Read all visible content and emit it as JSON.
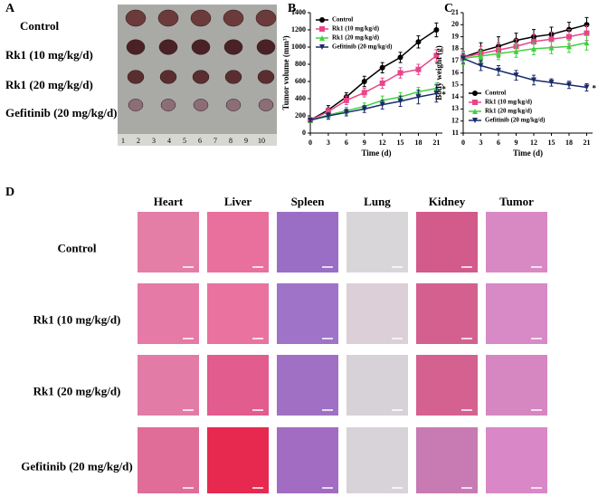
{
  "panel_a": {
    "label": "A",
    "groups": [
      "Control",
      "Rk1 (10 mg/kg/d)",
      "Rk1 (20 mg/kg/d)",
      "Gefitinib (20 mg/kg/d)"
    ],
    "ruler": [
      1,
      2,
      3,
      4,
      5,
      6,
      7,
      8,
      9,
      10
    ]
  },
  "chart_data": [
    {
      "type": "line",
      "label": "B",
      "xlabel": "Time (d)",
      "ylabel": "Tumor volume (mm³)",
      "x": [
        0,
        3,
        6,
        9,
        12,
        15,
        18,
        21
      ],
      "xlim": [
        0,
        22
      ],
      "xticks": [
        0,
        3,
        6,
        9,
        12,
        15,
        18,
        21
      ],
      "ylim": [
        0,
        1400
      ],
      "yticks": [
        0,
        200,
        400,
        600,
        800,
        1000,
        1200,
        1400
      ],
      "legend": "upper left",
      "annotations": [
        "*",
        "*"
      ],
      "series": [
        {
          "name": "Control",
          "color": "#000000",
          "marker": "circle",
          "values": [
            150,
            270,
            420,
            600,
            760,
            880,
            1060,
            1200
          ],
          "errors": [
            20,
            50,
            50,
            60,
            60,
            60,
            70,
            80
          ]
        },
        {
          "name": "Rk1 (10 mg/kg/d)",
          "color": "#e8458a",
          "marker": "square",
          "values": [
            150,
            250,
            380,
            470,
            580,
            700,
            740,
            900
          ],
          "errors": [
            20,
            40,
            50,
            50,
            60,
            60,
            60,
            70
          ]
        },
        {
          "name": "Rk1 (20 mg/kg/d)",
          "color": "#3ed23e",
          "marker": "triangle",
          "values": [
            150,
            210,
            260,
            310,
            380,
            420,
            480,
            520
          ],
          "errors": [
            20,
            40,
            40,
            40,
            50,
            50,
            50,
            60
          ]
        },
        {
          "name": "Gefitinib (20 mg/kg/d)",
          "color": "#1b2a6b",
          "marker": "triangle-down",
          "values": [
            150,
            200,
            240,
            280,
            330,
            370,
            420,
            460
          ],
          "errors": [
            20,
            40,
            40,
            40,
            50,
            60,
            80,
            100
          ]
        }
      ]
    },
    {
      "type": "line",
      "label": "C",
      "xlabel": "Time (d)",
      "ylabel": "Body weight (g)",
      "x": [
        0,
        3,
        6,
        9,
        12,
        15,
        18,
        21
      ],
      "xlim": [
        0,
        22
      ],
      "xticks": [
        0,
        3,
        6,
        9,
        12,
        15,
        18,
        21
      ],
      "ylim": [
        11,
        21
      ],
      "yticks": [
        11,
        12,
        13,
        14,
        15,
        16,
        17,
        18,
        19,
        20,
        21
      ],
      "legend": "lower left",
      "annotations": [
        "*"
      ],
      "series": [
        {
          "name": "Control",
          "color": "#000000",
          "marker": "circle",
          "values": [
            17.3,
            17.8,
            18.2,
            18.7,
            19.0,
            19.2,
            19.6,
            20.0
          ],
          "errors": [
            0.5,
            0.7,
            0.8,
            0.6,
            0.6,
            0.6,
            0.6,
            0.6
          ]
        },
        {
          "name": "Rk1 (10 mg/kg/d)",
          "color": "#e8458a",
          "marker": "square",
          "values": [
            17.3,
            17.6,
            17.9,
            18.2,
            18.6,
            18.8,
            19.0,
            19.3
          ],
          "errors": [
            0.5,
            0.6,
            0.6,
            0.6,
            0.6,
            0.6,
            0.6,
            0.6
          ]
        },
        {
          "name": "Rk1 (20 mg/kg/d)",
          "color": "#3ed23e",
          "marker": "triangle",
          "values": [
            17.2,
            17.4,
            17.6,
            17.8,
            18.0,
            18.1,
            18.2,
            18.5
          ],
          "errors": [
            0.5,
            0.5,
            0.5,
            0.5,
            0.5,
            0.5,
            0.5,
            0.6
          ]
        },
        {
          "name": "Gefitinib (20 mg/kg/d)",
          "color": "#1b2a6b",
          "marker": "triangle-down",
          "values": [
            17.2,
            16.6,
            16.2,
            15.8,
            15.4,
            15.2,
            15.0,
            14.8
          ],
          "errors": [
            0.4,
            0.4,
            0.4,
            0.4,
            0.4,
            0.3,
            0.3,
            0.3
          ]
        }
      ]
    }
  ],
  "panel_d": {
    "label": "D",
    "columns": [
      "Heart",
      "Liver",
      "Spleen",
      "Lung",
      "Kidney",
      "Tumor"
    ],
    "rows": [
      "Control",
      "Rk1 (10 mg/kg/d)",
      "Rk1 (20 mg/kg/d)",
      "Gefitinib (20 mg/kg/d)"
    ]
  }
}
